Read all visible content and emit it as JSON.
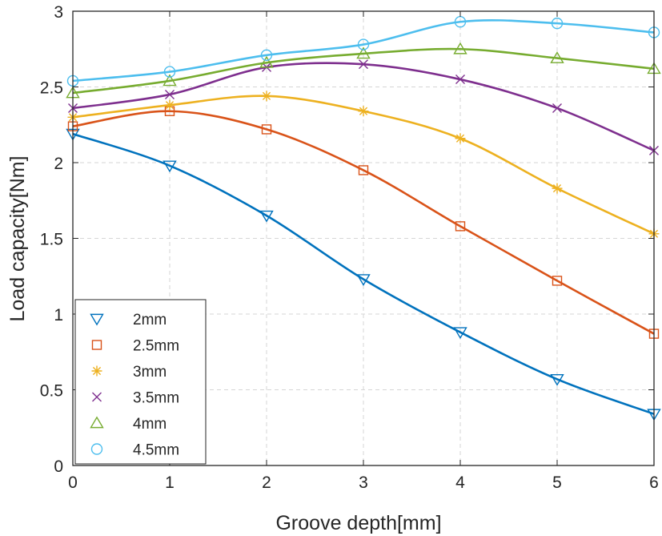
{
  "chart_data": {
    "type": "line",
    "title": "",
    "xlabel": "Groove depth[mm]",
    "ylabel": "Load capacity[Nm]",
    "xlim": [
      0,
      6
    ],
    "ylim": [
      0,
      3
    ],
    "grid": true,
    "legend_position": "bottom-left",
    "x": [
      0,
      1,
      2,
      3,
      4,
      5,
      6
    ],
    "x_ticks": [
      "0",
      "1",
      "2",
      "3",
      "4",
      "5",
      "6"
    ],
    "y_ticks": [
      {
        "value": 0,
        "label": "0"
      },
      {
        "value": 0.5,
        "label": "0.5"
      },
      {
        "value": 1,
        "label": "1"
      },
      {
        "value": 1.5,
        "label": "1.5"
      },
      {
        "value": 2,
        "label": "2"
      },
      {
        "value": 2.5,
        "label": "2.5"
      },
      {
        "value": 3,
        "label": "3"
      }
    ],
    "series": [
      {
        "name": "2mm",
        "marker": "triangle-down",
        "color": "#0072BD",
        "values": [
          2.19,
          1.98,
          1.65,
          1.23,
          0.88,
          0.57,
          0.34
        ]
      },
      {
        "name": "2.5mm",
        "marker": "square",
        "color": "#D95319",
        "values": [
          2.24,
          2.34,
          2.22,
          1.95,
          1.58,
          1.22,
          0.87
        ]
      },
      {
        "name": "3mm",
        "marker": "asterisk",
        "color": "#EDB120",
        "values": [
          2.3,
          2.38,
          2.44,
          2.34,
          2.16,
          1.83,
          1.53
        ]
      },
      {
        "name": "3.5mm",
        "marker": "x",
        "color": "#7E2F8E",
        "values": [
          2.36,
          2.45,
          2.63,
          2.65,
          2.55,
          2.36,
          2.08
        ]
      },
      {
        "name": "4mm",
        "marker": "triangle-up",
        "color": "#77AC30",
        "values": [
          2.46,
          2.54,
          2.66,
          2.72,
          2.75,
          2.69,
          2.62
        ]
      },
      {
        "name": "4.5mm",
        "marker": "circle",
        "color": "#4DBEEE",
        "values": [
          2.54,
          2.6,
          2.71,
          2.78,
          2.93,
          2.92,
          2.86
        ]
      }
    ]
  }
}
